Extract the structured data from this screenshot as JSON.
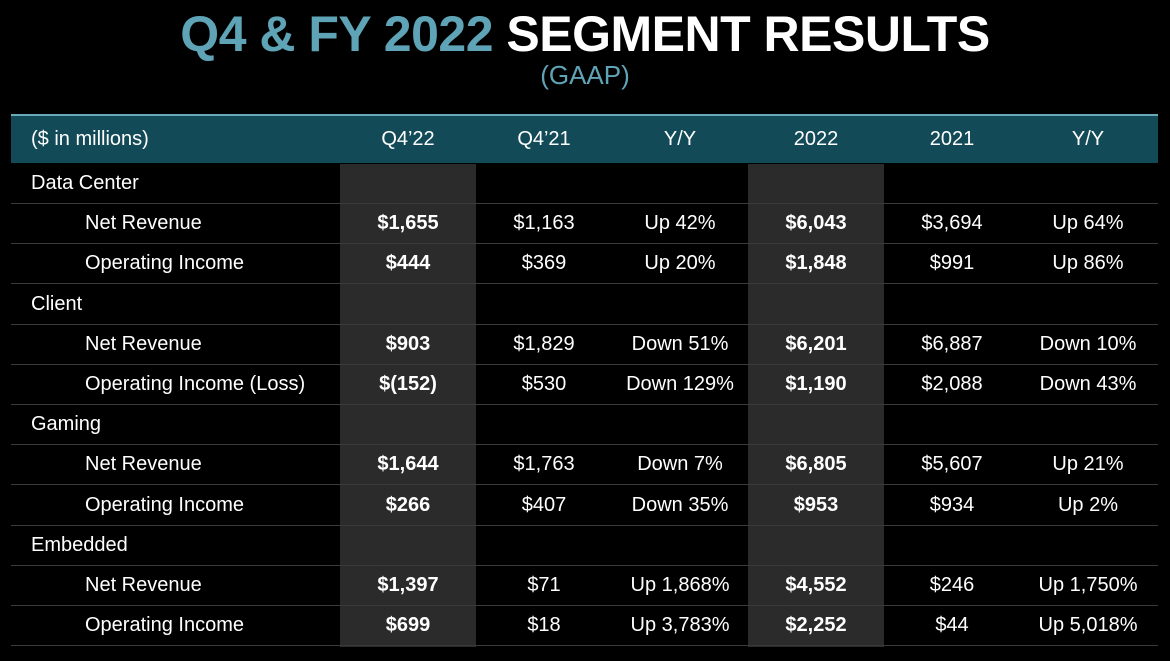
{
  "title": {
    "accent": "Q4 & FY 2022",
    "main": "SEGMENT RESULTS"
  },
  "subtitle": "(GAAP)",
  "colors": {
    "accent": "#5fa4b6",
    "header_bg": "#134a57",
    "shade": "#2b2b2b",
    "background": "#000000"
  },
  "table": {
    "headers": [
      "($ in millions)",
      "Q4’22",
      "Q4’21",
      "Y/Y",
      "2022",
      "2021",
      "Y/Y"
    ],
    "rows": [
      {
        "label": "Data Center",
        "type": "segment",
        "values": [
          "",
          "",
          "",
          "",
          "",
          ""
        ]
      },
      {
        "label": "Net Revenue",
        "type": "metric",
        "values": [
          "$1,655",
          "$1,163",
          "Up 42%",
          "$6,043",
          "$3,694",
          "Up 64%"
        ]
      },
      {
        "label": "Operating Income",
        "type": "metric",
        "values": [
          "$444",
          "$369",
          "Up 20%",
          "$1,848",
          "$991",
          "Up 86%"
        ]
      },
      {
        "label": "Client",
        "type": "segment",
        "values": [
          "",
          "",
          "",
          "",
          "",
          ""
        ]
      },
      {
        "label": "Net Revenue",
        "type": "metric",
        "values": [
          "$903",
          "$1,829",
          "Down 51%",
          "$6,201",
          "$6,887",
          "Down 10%"
        ]
      },
      {
        "label": "Operating Income (Loss)",
        "type": "metric",
        "values": [
          "$(152)",
          "$530",
          "Down 129%",
          "$1,190",
          "$2,088",
          "Down 43%"
        ]
      },
      {
        "label": "Gaming",
        "type": "segment",
        "values": [
          "",
          "",
          "",
          "",
          "",
          ""
        ]
      },
      {
        "label": "Net Revenue",
        "type": "metric",
        "values": [
          "$1,644",
          "$1,763",
          "Down 7%",
          "$6,805",
          "$5,607",
          "Up 21%"
        ]
      },
      {
        "label": "Operating Income",
        "type": "metric",
        "values": [
          "$266",
          "$407",
          "Down 35%",
          "$953",
          "$934",
          "Up 2%"
        ]
      },
      {
        "label": "Embedded",
        "type": "segment",
        "values": [
          "",
          "",
          "",
          "",
          "",
          ""
        ]
      },
      {
        "label": "Net Revenue",
        "type": "metric",
        "values": [
          "$1,397",
          "$71",
          "Up 1,868%",
          "$4,552",
          "$246",
          "Up 1,750%"
        ]
      },
      {
        "label": "Operating Income",
        "type": "metric",
        "values": [
          "$699",
          "$18",
          "Up 3,783%",
          "$2,252",
          "$44",
          "Up 5,018%"
        ]
      }
    ]
  }
}
